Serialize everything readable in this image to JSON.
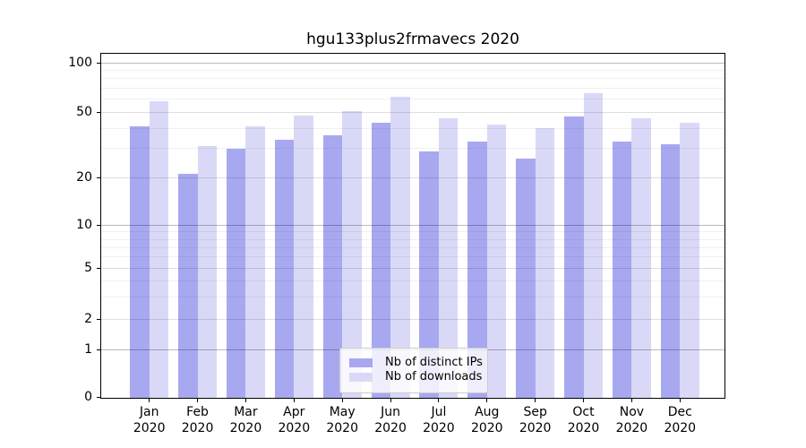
{
  "title": "hgu133plus2frmavecs 2020",
  "chart_data": {
    "type": "bar",
    "title": "hgu133plus2frmavecs 2020",
    "categories": [
      "Jan 2020",
      "Feb 2020",
      "Mar 2020",
      "Apr 2020",
      "May 2020",
      "Jun 2020",
      "Jul 2020",
      "Aug 2020",
      "Sep 2020",
      "Oct 2020",
      "Nov 2020",
      "Dec 2020"
    ],
    "series": [
      {
        "name": "Nb of distinct IPs",
        "color": "#a8a8f0",
        "values": [
          41,
          21,
          30,
          34,
          36,
          43,
          29,
          33,
          26,
          47,
          33,
          32
        ]
      },
      {
        "name": "Nb of downloads",
        "color": "#d9d9f7",
        "values": [
          58,
          31,
          41,
          48,
          51,
          62,
          46,
          42,
          40,
          65,
          46,
          43
        ]
      }
    ],
    "xlabel": "",
    "ylabel": "",
    "yscale": "symlog",
    "ylim": [
      0,
      113
    ],
    "yticks": [
      0,
      1,
      2,
      5,
      10,
      20,
      50,
      100
    ],
    "ytick_minor": [
      3,
      4,
      6,
      7,
      8,
      9,
      30,
      40,
      60,
      70,
      80,
      90
    ],
    "grid": "horizontal",
    "legend_position": "lower center"
  }
}
